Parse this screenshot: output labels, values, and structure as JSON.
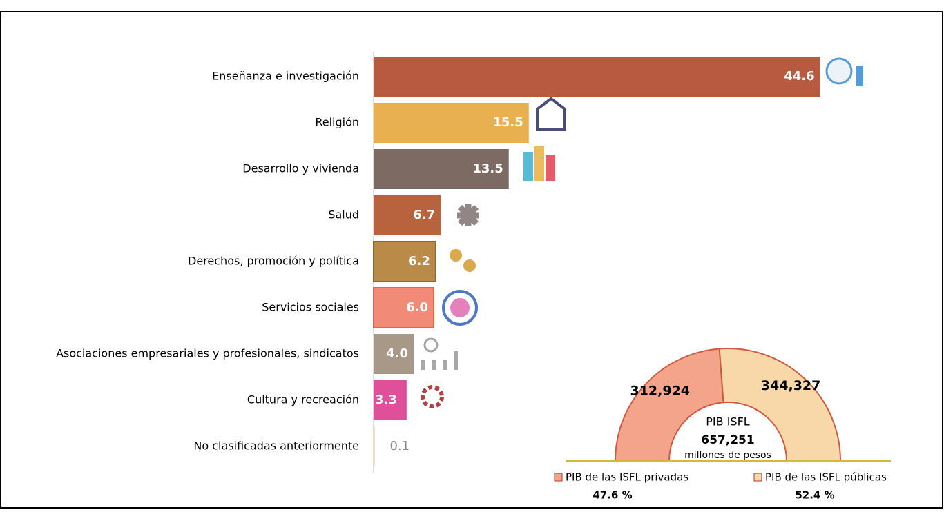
{
  "chart_data": [
    {
      "type": "bar",
      "orientation": "horizontal",
      "categories": [
        "Enseñanza e investigación",
        "Religión",
        "Desarrollo y vivienda",
        "Salud",
        "Derechos, promoción y política",
        "Servicios sociales",
        "Asociaciones empresariales y profesionales, sindicatos",
        "Cultura y recreación",
        "No clasificadas anteriormente"
      ],
      "values": [
        44.6,
        15.5,
        13.5,
        6.7,
        6.2,
        6.0,
        4.0,
        3.3,
        0.1
      ],
      "value_labels": [
        "44.6",
        "15.5",
        "13.5",
        "6.7",
        "6.2",
        "6.0",
        "4.0",
        "3.3",
        "0.1"
      ],
      "colors": [
        "#b85a40",
        "#e8b050",
        "#7d6b63",
        "#b9633e",
        "#b98a48",
        "#f28a78",
        "#a89888",
        "#e0509a",
        "#e8c090"
      ]
    },
    {
      "type": "pie",
      "style": "half-donut",
      "series": [
        {
          "name": "PIB de las ISFL privadas",
          "color": "#f4a48a"
        },
        {
          "name": "PIB de las ISFL públicas",
          "color": "#f8d8a8"
        }
      ],
      "values": [
        312924,
        344327
      ],
      "value_labels": [
        "312,924",
        "344,327"
      ],
      "shares": [
        47.6,
        52.4
      ],
      "share_labels": [
        "47.6 %",
        "52.4 %"
      ],
      "center_title": "PIB ISFL",
      "center_value": "657,251",
      "center_unit": "millones de pesos"
    }
  ]
}
